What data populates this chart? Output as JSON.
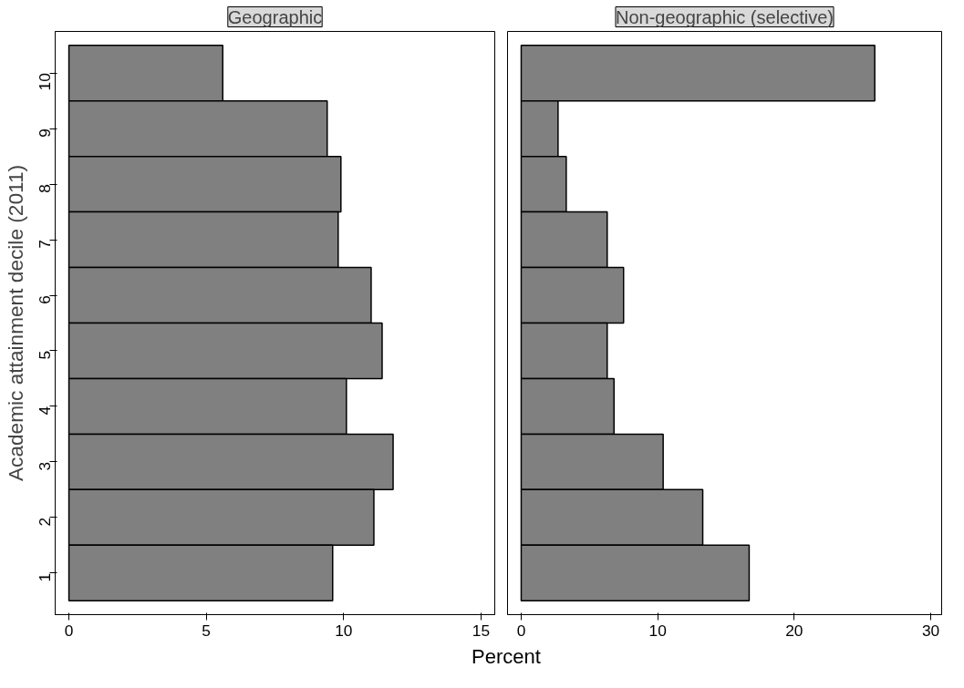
{
  "chart_data": [
    {
      "type": "bar",
      "orientation": "horizontal",
      "title": "Geographic",
      "ylabel": "Academic attainment decile (2011)",
      "xlabel": "Percent",
      "categories": [
        "10",
        "9",
        "8",
        "7",
        "6",
        "5",
        "4",
        "3",
        "2",
        "1"
      ],
      "values": [
        5.6,
        9.4,
        9.9,
        9.8,
        11.0,
        11.4,
        10.1,
        11.8,
        11.1,
        9.6
      ],
      "color": "#808080",
      "xlim": [
        -0.5,
        15.5
      ],
      "xticks": [
        0,
        5,
        10,
        15
      ]
    },
    {
      "type": "bar",
      "orientation": "horizontal",
      "title": "Non-geographic (selective)",
      "categories": [
        "10",
        "9",
        "8",
        "7",
        "6",
        "5",
        "4",
        "3",
        "2",
        "1"
      ],
      "values": [
        25.9,
        2.7,
        3.3,
        6.3,
        7.5,
        6.3,
        6.8,
        10.4,
        13.3,
        16.7
      ],
      "color": "#808080",
      "xlim": [
        -1,
        30.8
      ],
      "xticks": [
        0,
        10,
        20,
        30
      ],
      "tick_labels": "x"
    }
  ]
}
